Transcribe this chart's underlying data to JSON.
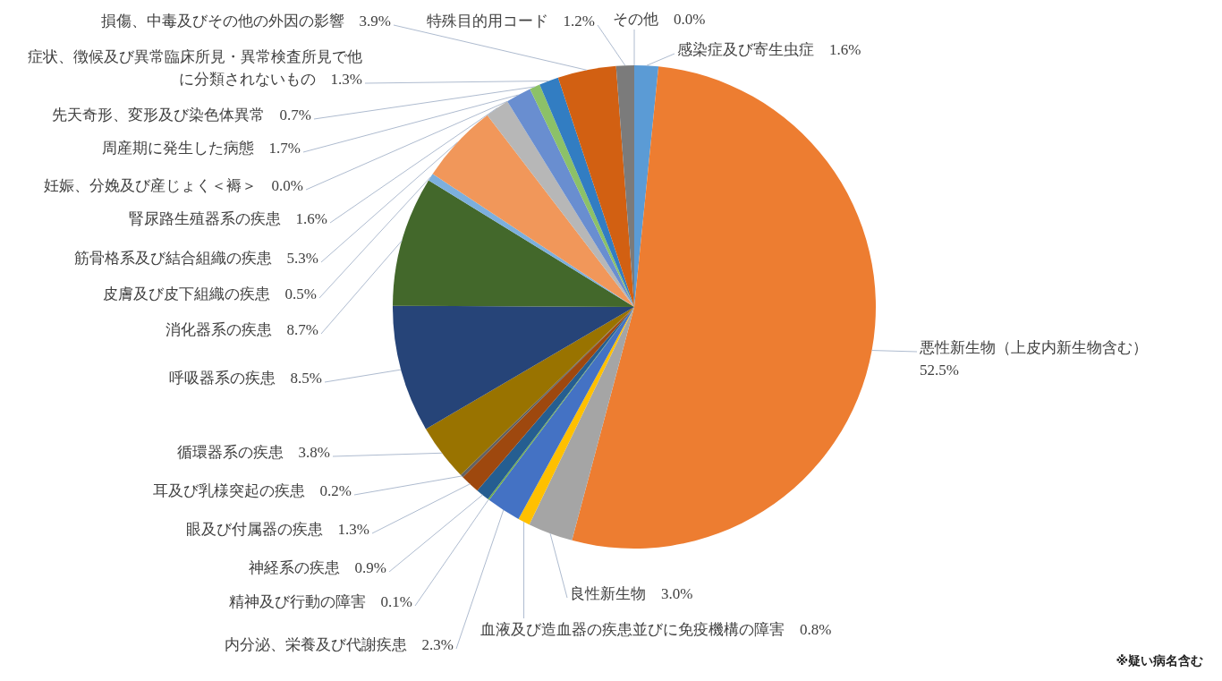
{
  "chart_data": {
    "type": "pie",
    "categories": [
      "感染症及び寄生虫症",
      "悪性新生物（上皮内新生物含む）",
      "良性新生物",
      "血液及び造血器の疾患並びに免疫機構の障害",
      "内分泌、栄養及び代謝疾患",
      "精神及び行動の障害",
      "神経系の疾患",
      "眼及び付属器の疾患",
      "耳及び乳様突起の疾患",
      "循環器系の疾患",
      "呼吸器系の疾患",
      "消化器系の疾患",
      "皮膚及び皮下組織の疾患",
      "筋骨格系及び結合組織の疾患",
      "腎尿路生殖器系の疾患",
      "妊娠、分娩及び産じょく＜褥＞",
      "周産期に発生した病態",
      "先天奇形、変形及び染色体異常",
      "症状、徴候及び異常臨床所見・異常検査所見で他に分類されないもの",
      "損傷、中毒及びその他の外因の影響",
      "特殊目的用コード",
      "その他"
    ],
    "values": [
      1.6,
      52.5,
      3.0,
      0.8,
      2.3,
      0.1,
      0.9,
      1.3,
      0.2,
      3.8,
      8.5,
      8.7,
      0.5,
      5.3,
      1.6,
      0.0,
      1.7,
      0.7,
      1.3,
      3.9,
      1.2,
      0.0
    ],
    "colors": [
      "#5b9bd5",
      "#ed7d31",
      "#a5a5a5",
      "#ffc000",
      "#4472c4",
      "#70ad47",
      "#255e91",
      "#9e480e",
      "#636363",
      "#997300",
      "#264478",
      "#43682b",
      "#7cafdd",
      "#f1975a",
      "#b7b7b7",
      "#ffcd33",
      "#698ed0",
      "#8cc168",
      "#327dc2",
      "#d26012",
      "#7b7b7b",
      "#bf9000"
    ],
    "value_labels": [
      "1.6%",
      "52.5%",
      "3.0%",
      "0.8%",
      "2.3%",
      "0.1%",
      "0.9%",
      "1.3%",
      "0.2%",
      "3.8%",
      "8.5%",
      "8.7%",
      "0.5%",
      "5.3%",
      "1.6%",
      "0.0%",
      "1.7%",
      "0.7%",
      "1.3%",
      "3.9%",
      "1.2%",
      "0.0%"
    ],
    "annotations": [
      "※疑い病名含む"
    ]
  }
}
